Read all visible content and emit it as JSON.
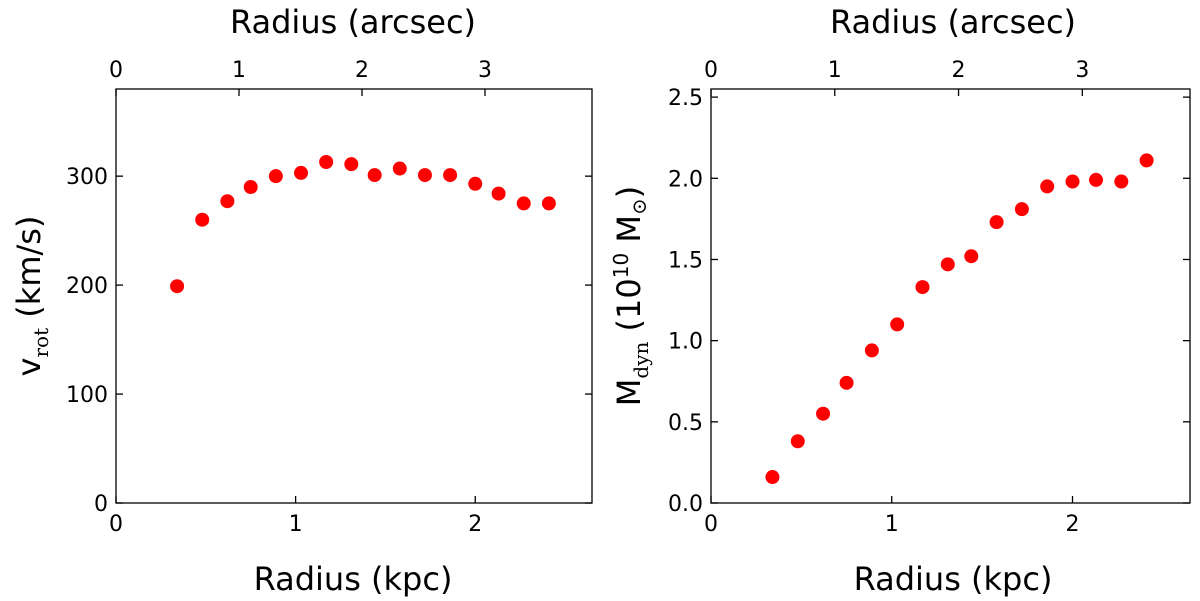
{
  "chart_data": [
    {
      "type": "scatter",
      "name": "rotation-velocity",
      "color": "#ff0000",
      "bottom_axis": {
        "label": "Radius  (kpc)",
        "xlim": [
          0,
          2.65
        ],
        "ticks": [
          0,
          1,
          2
        ],
        "tick_labels": [
          "0",
          "1",
          "2"
        ]
      },
      "top_axis": {
        "label": "Radius  (arcsec)",
        "xlim": [
          0,
          3.87
        ],
        "ticks": [
          0,
          1,
          2,
          3
        ],
        "tick_labels": [
          "0",
          "1",
          "2",
          "3"
        ]
      },
      "y_axis": {
        "label_main": "v",
        "label_sub": "rot",
        "label_units": " (km/s)",
        "ylim": [
          0,
          380
        ],
        "ticks": [
          0,
          100,
          200,
          300
        ],
        "tick_labels": [
          "0",
          "100",
          "200",
          "300"
        ]
      },
      "x": [
        0.34,
        0.48,
        0.62,
        0.75,
        0.89,
        1.03,
        1.17,
        1.31,
        1.44,
        1.58,
        1.72,
        1.86,
        2.0,
        2.13,
        2.27,
        2.41
      ],
      "y": [
        199,
        260,
        277,
        290,
        300,
        303,
        313,
        311,
        301,
        307,
        301,
        301,
        293,
        284,
        275,
        275
      ]
    },
    {
      "type": "scatter",
      "name": "dynamical-mass",
      "color": "#ff0000",
      "bottom_axis": {
        "label": "Radius  (kpc)",
        "xlim": [
          0,
          2.65
        ],
        "ticks": [
          0,
          1,
          2
        ],
        "tick_labels": [
          "0",
          "1",
          "2"
        ]
      },
      "top_axis": {
        "label": "Radius  (arcsec)",
        "xlim": [
          0,
          3.87
        ],
        "ticks": [
          0,
          1,
          2,
          3
        ],
        "tick_labels": [
          "0",
          "1",
          "2",
          "3"
        ]
      },
      "y_axis": {
        "label_main": "M",
        "label_sub": "dyn",
        "label_units_pre": " (10",
        "label_sup": "10",
        "label_units_post": " M",
        "label_sun": "⊙",
        "label_close": ")",
        "ylim": [
          0,
          2.55
        ],
        "ticks": [
          0,
          0.5,
          1.0,
          1.5,
          2.0,
          2.5
        ],
        "tick_labels": [
          "0.0",
          "0.5",
          "1.0",
          "1.5",
          "2.0",
          "2.5"
        ]
      },
      "x": [
        0.34,
        0.48,
        0.62,
        0.75,
        0.89,
        1.03,
        1.17,
        1.31,
        1.44,
        1.58,
        1.72,
        1.86,
        2.0,
        2.13,
        2.27,
        2.41
      ],
      "y": [
        0.16,
        0.38,
        0.55,
        0.74,
        0.94,
        1.1,
        1.33,
        1.47,
        1.52,
        1.73,
        1.81,
        1.95,
        1.98,
        1.99,
        1.98,
        2.11
      ]
    }
  ]
}
